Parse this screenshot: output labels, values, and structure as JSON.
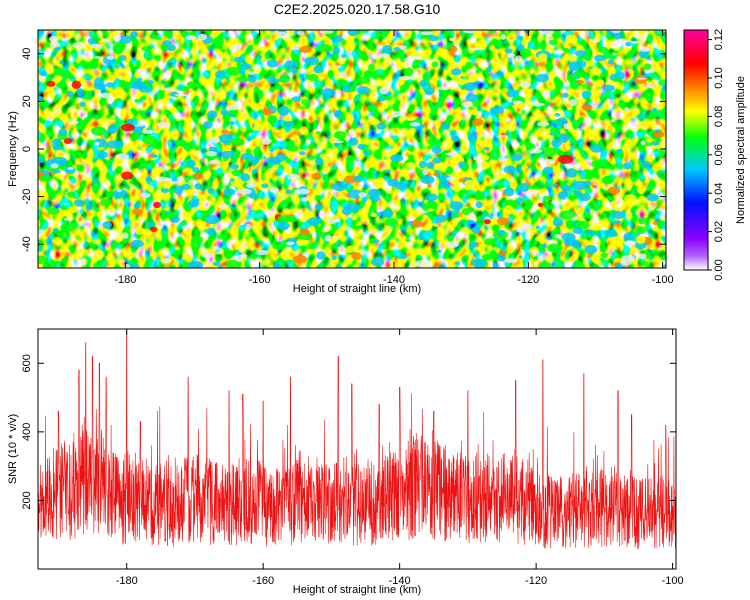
{
  "title": "C2E2.2025.020.17.58.G10",
  "chart_data": [
    {
      "type": "heatmap",
      "title": "C2E2.2025.020.17.58.G10",
      "xlabel": "Height of straight line (km)",
      "ylabel": "Frequency (Hz)",
      "xlim": [
        -193,
        -99.5
      ],
      "ylim": [
        -50,
        50
      ],
      "x_ticks": [
        -180,
        -160,
        -140,
        -120,
        -100
      ],
      "y_ticks": [
        -40,
        -20,
        0,
        20,
        40
      ],
      "colorbar": {
        "label": "Normalized spectral amplitude",
        "range": [
          0,
          0.125
        ],
        "ticks": [
          0.0,
          0.02,
          0.04,
          0.06,
          0.08,
          0.1,
          0.12
        ],
        "colormap": [
          "#ffffff",
          "#8a00ff",
          "#0010ff",
          "#00c8ff",
          "#00ff10",
          "#ffff00",
          "#ff7f00",
          "#ff0000",
          "#ff00a0"
        ]
      },
      "value_description": "noise-like speckle field, typical amplitude 0.02-0.06 with scattered peaks up to ~0.12"
    },
    {
      "type": "line",
      "xlabel": "Height of straight line (km)",
      "ylabel": "SNR (10 * v/v)",
      "xlim": [
        -193,
        -99.5
      ],
      "ylim": [
        0,
        700
      ],
      "x_ticks": [
        -180,
        -160,
        -140,
        -120,
        -100
      ],
      "y_ticks": [
        200,
        400,
        600
      ],
      "series": [
        {
          "color": "#ee1111",
          "samples_x": [
            -193,
            -190,
            -187,
            -185,
            -183,
            -181,
            -179,
            -177,
            -175,
            -173,
            -171,
            -169,
            -167,
            -165,
            -163,
            -161,
            -159,
            -157,
            -155,
            -153,
            -151,
            -149,
            -147,
            -145,
            -143,
            -141,
            -139,
            -137,
            -135,
            -133,
            -131,
            -129,
            -127,
            -125,
            -123,
            -121,
            -119,
            -117,
            -115,
            -113,
            -111,
            -109,
            -107,
            -105,
            -103,
            -101,
            -99.5
          ],
          "baseline": [
            180,
            220,
            250,
            260,
            240,
            190,
            230,
            200,
            190,
            185,
            200,
            205,
            190,
            185,
            200,
            195,
            180,
            185,
            195,
            180,
            185,
            190,
            180,
            185,
            200,
            210,
            230,
            240,
            230,
            220,
            210,
            200,
            205,
            210,
            200,
            195,
            170,
            160,
            175,
            170,
            180,
            175,
            170,
            160,
            170,
            165,
            160
          ],
          "peaks": [
            [
              -190,
              460
            ],
            [
              -187,
              580
            ],
            [
              -186,
              660
            ],
            [
              -185,
              620
            ],
            [
              -184,
              600
            ],
            [
              -183,
              560
            ],
            [
              -180,
              695
            ],
            [
              -178,
              430
            ],
            [
              -171,
              560
            ],
            [
              -165,
              520
            ],
            [
              -163,
              510
            ],
            [
              -160,
              490
            ],
            [
              -156,
              560
            ],
            [
              -149,
              620
            ],
            [
              -147,
              540
            ],
            [
              -143,
              480
            ],
            [
              -140,
              530
            ],
            [
              -135,
              460
            ],
            [
              -130,
              520
            ],
            [
              -123,
              550
            ],
            [
              -119,
              610
            ],
            [
              -113,
              570
            ],
            [
              -108,
              520
            ],
            [
              -106,
              450
            ],
            [
              -101,
              420
            ]
          ],
          "min_value": 20
        }
      ]
    }
  ]
}
